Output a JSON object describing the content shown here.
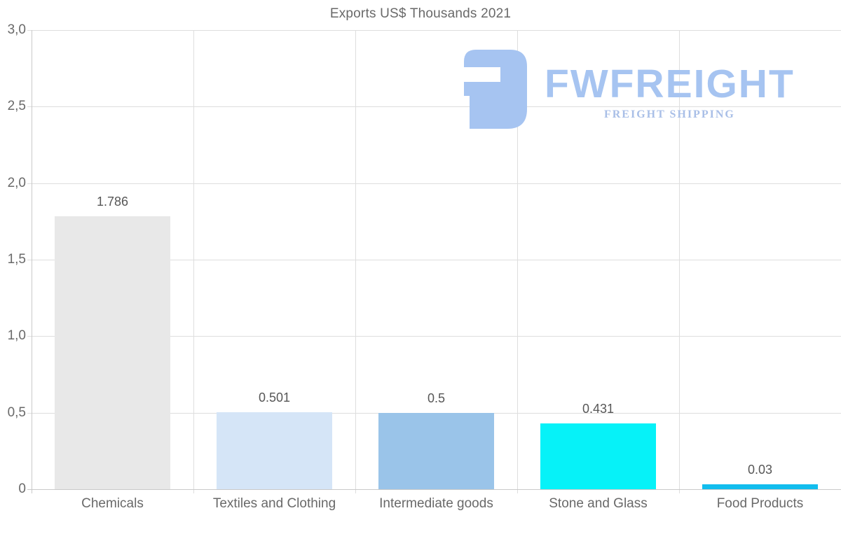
{
  "chart_data": {
    "type": "bar",
    "title": "Exports US$ Thousands 2021",
    "categories": [
      "Chemicals",
      "Textiles and Clothing",
      "Intermediate goods",
      "Stone and Glass",
      "Food Products"
    ],
    "values": [
      1.786,
      0.501,
      0.5,
      0.431,
      0.03
    ],
    "value_labels": [
      "1.786",
      "0.501",
      "0.5",
      "0.431",
      "0.03"
    ],
    "bar_colors": [
      "#e8e8e8",
      "#d5e5f7",
      "#9ac4e9",
      "#06f2f8",
      "#12bdee"
    ],
    "ylim": [
      0,
      3
    ],
    "yticks": [
      {
        "value": 0,
        "label": "0"
      },
      {
        "value": 0.5,
        "label": "0,5"
      },
      {
        "value": 1,
        "label": "1,0"
      },
      {
        "value": 1.5,
        "label": "1,5"
      },
      {
        "value": 2,
        "label": "2,0"
      },
      {
        "value": 2.5,
        "label": "2,5"
      },
      {
        "value": 3,
        "label": "3,0"
      }
    ],
    "grid": true,
    "legend_position": "none",
    "xlabel": "",
    "ylabel": ""
  },
  "watermark": {
    "brand": "FWFREIGHT",
    "tagline": "FREIGHT SHIPPING",
    "brand_color": "#a6c4f1",
    "tagline_color": "#a9bfe7"
  },
  "colors": {
    "background": "#ffffff",
    "title_text": "#696969",
    "axis_text": "#696969",
    "value_text": "#565656",
    "gridline": "#dedede",
    "axis_line": "#c9c9c9"
  }
}
